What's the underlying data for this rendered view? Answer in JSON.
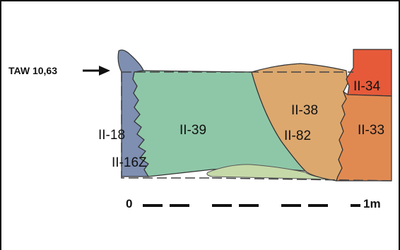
{
  "reference": {
    "label": "TAW 10,63"
  },
  "layers": [
    {
      "id": "II-18",
      "label": "II-18",
      "color": "#7e8fb1"
    },
    {
      "id": "II-16Z",
      "label": "II-16Z",
      "color": "#7e8fb1"
    },
    {
      "id": "II-39",
      "label": "II-39",
      "color": "#8ec7a8"
    },
    {
      "id": "II-38",
      "label": "II-38",
      "color": "#dca86e"
    },
    {
      "id": "II-82",
      "label": "II-82",
      "color": "#dca86e"
    },
    {
      "id": "II-34",
      "label": "II-34",
      "color": "#e65a3a"
    },
    {
      "id": "II-33",
      "label": "II-33",
      "color": "#e08a52"
    }
  ],
  "lens_color": "#c5d9a8",
  "scale": {
    "start_label": "0",
    "end_label": "1m"
  }
}
